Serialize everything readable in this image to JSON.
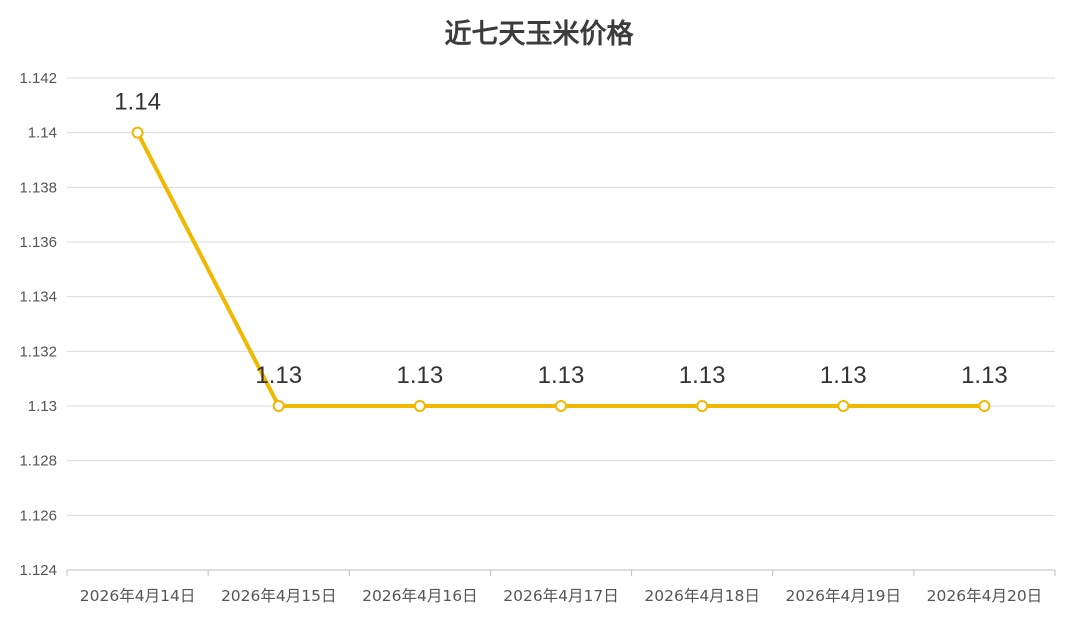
{
  "chart_data": {
    "type": "line",
    "title": "近七天玉米价格",
    "categories": [
      "2026年4月14日",
      "2026年4月15日",
      "2026年4月16日",
      "2026年4月17日",
      "2026年4月18日",
      "2026年4月19日",
      "2026年4月20日"
    ],
    "series": [
      {
        "values": [
          1.14,
          1.13,
          1.13,
          1.13,
          1.13,
          1.13,
          1.13
        ],
        "color": "#f0b800"
      }
    ],
    "data_labels": [
      "1.14",
      "1.13",
      "1.13",
      "1.13",
      "1.13",
      "1.13",
      "1.13"
    ],
    "yticks": [
      "1.124",
      "1.126",
      "1.128",
      "1.13",
      "1.132",
      "1.134",
      "1.136",
      "1.138",
      "1.14",
      "1.142"
    ],
    "ylim": [
      1.124,
      1.142
    ],
    "grid": true,
    "legend": "none"
  }
}
